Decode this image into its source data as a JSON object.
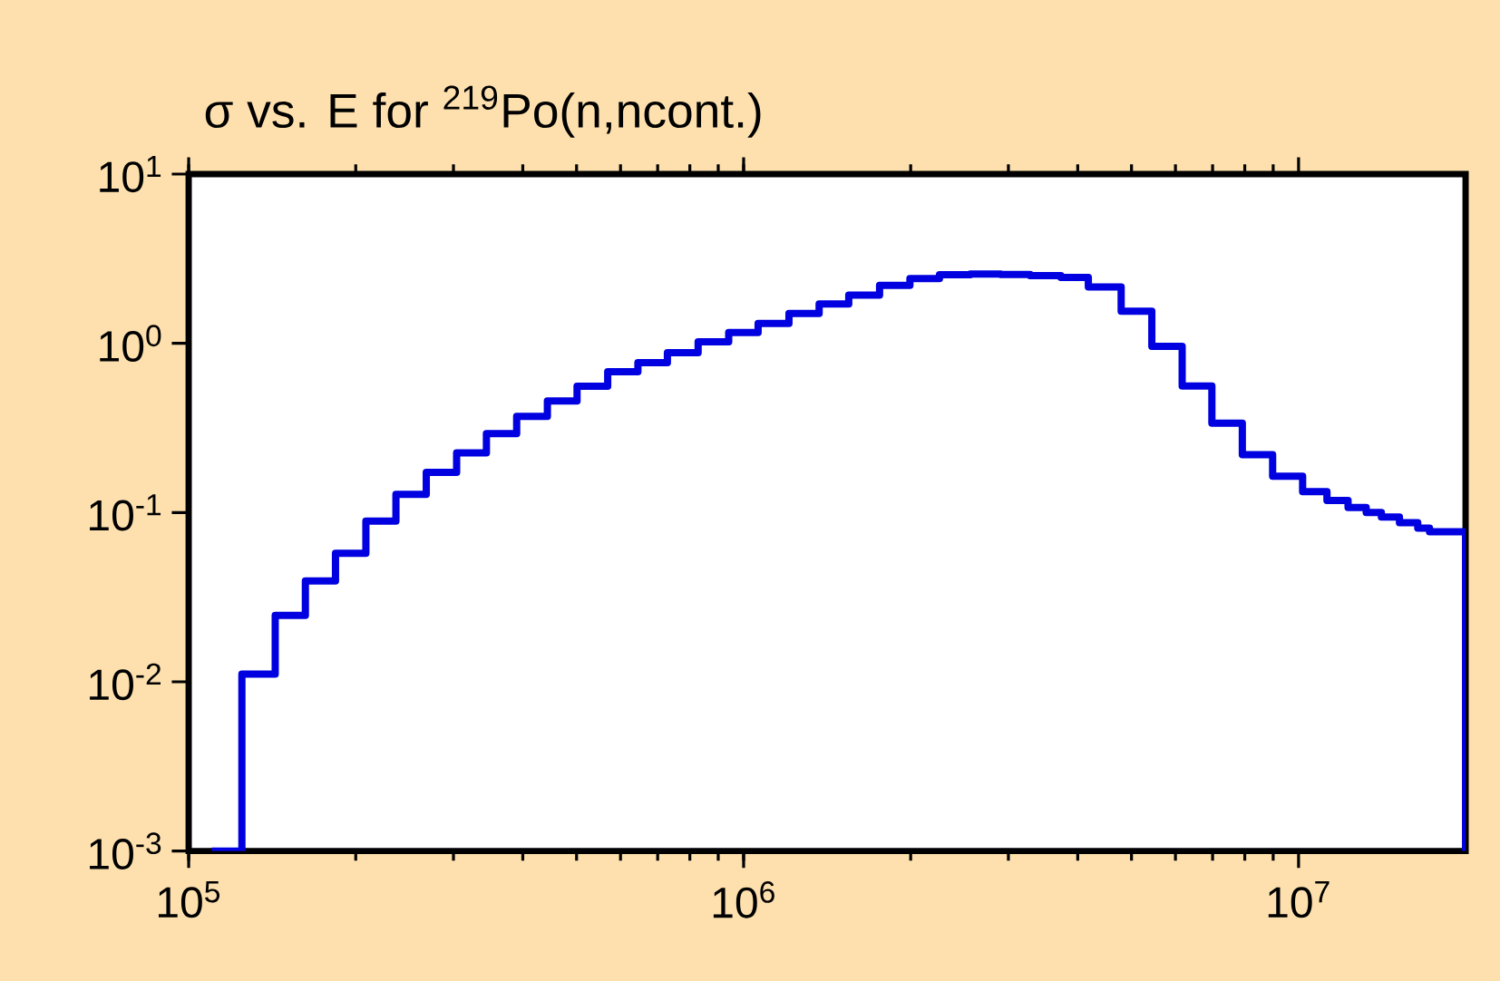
{
  "chart_data": {
    "type": "step",
    "title": "σ vs. E for $^{219}$Po(n,ncont.)",
    "x": [
      110000,
      124700,
      143200,
      162300,
      183900,
      208600,
      236300,
      268000,
      304000,
      344000,
      390000,
      443000,
      501000,
      569000,
      645000,
      729000,
      828000,
      940000,
      1062000,
      1207000,
      1368000,
      1547000,
      1758000,
      1994000,
      2254000,
      2562000,
      2905000,
      3283000,
      3730000,
      4180000,
      4790000,
      5440000,
      6170000,
      6980000,
      7920000,
      8980000,
      10170000,
      11250000,
      12280000,
      13240000,
      14100000,
      15200000,
      16400000,
      17220000,
      20000000
    ],
    "values": [
      0.001,
      0.0111,
      0.0247,
      0.0394,
      0.0575,
      0.089,
      0.128,
      0.173,
      0.225,
      0.293,
      0.37,
      0.457,
      0.557,
      0.679,
      0.768,
      0.88,
      1.02,
      1.16,
      1.31,
      1.5,
      1.71,
      1.93,
      2.2,
      2.41,
      2.54,
      2.57,
      2.55,
      2.51,
      2.45,
      2.15,
      1.55,
      0.96,
      0.56,
      0.337,
      0.22,
      0.164,
      0.133,
      0.118,
      0.107,
      0.1,
      0.094,
      0.087,
      0.081,
      0.077,
      0.001
    ],
    "color": "#0000e0",
    "log": "xy",
    "xlim": [
      100000,
      20000000
    ],
    "ylim": [
      0.001,
      10
    ],
    "xticks": [
      {
        "value": 100000,
        "label": "10$^{5}$"
      },
      {
        "value": 1000000,
        "label": "10$^{6}$"
      },
      {
        "value": 10000000,
        "label": "10$^{7}$"
      }
    ],
    "yticks": [
      {
        "value": 0.001,
        "label": "10$^{-3}$"
      },
      {
        "value": 0.01,
        "label": "10$^{-2}$"
      },
      {
        "value": 0.1,
        "label": "10$^{-1}$"
      },
      {
        "value": 1,
        "label": "10$^{0}$"
      },
      {
        "value": 10,
        "label": "10$^{1}$"
      }
    ]
  }
}
